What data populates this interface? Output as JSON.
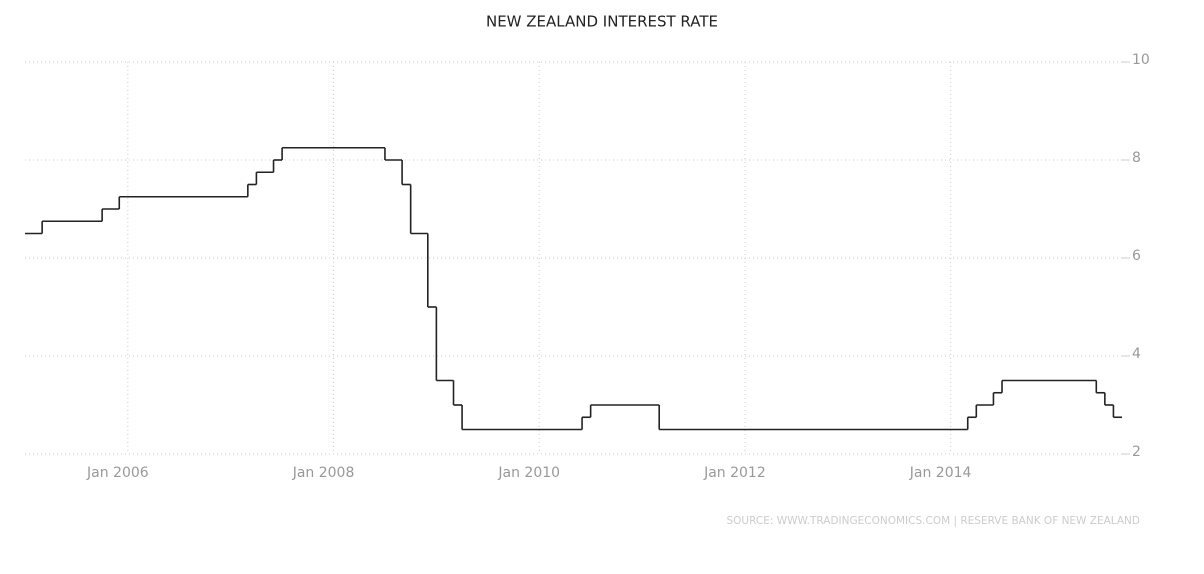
{
  "chart_data": {
    "type": "step-line",
    "title": "NEW ZEALAND INTEREST RATE",
    "source": "SOURCE: WWW.TRADINGECONOMICS.COM | RESERVE BANK OF NEW ZEALAND",
    "x": [
      "2005-01",
      "2005-03",
      "2005-10",
      "2005-12",
      "2007-03",
      "2007-04",
      "2007-06",
      "2007-07",
      "2008-07",
      "2008-09",
      "2008-10",
      "2008-12",
      "2009-01",
      "2009-03",
      "2009-04",
      "2010-06",
      "2010-07",
      "2011-03",
      "2014-03",
      "2014-04",
      "2014-06",
      "2014-07",
      "2015-06",
      "2015-07",
      "2015-08"
    ],
    "series": [
      {
        "color": "#222222",
        "values": [
          6.5,
          6.75,
          7.0,
          7.25,
          7.5,
          7.75,
          8.0,
          8.25,
          8.0,
          7.5,
          6.5,
          5.0,
          3.5,
          3.0,
          2.5,
          2.75,
          3.0,
          2.5,
          2.75,
          3.0,
          3.25,
          3.5,
          3.25,
          3.0,
          2.75
        ]
      }
    ],
    "xlim": [
      "2005-01",
      "2015-09"
    ],
    "xticks": [
      {
        "value": "2006-01",
        "label": "Jan 2006"
      },
      {
        "value": "2008-01",
        "label": "Jan 2008"
      },
      {
        "value": "2010-01",
        "label": "Jan 2010"
      },
      {
        "value": "2012-01",
        "label": "Jan 2012"
      },
      {
        "value": "2014-01",
        "label": "Jan 2014"
      }
    ],
    "ylim": [
      2,
      10
    ],
    "yticks": [
      2,
      4,
      6,
      8,
      10
    ],
    "grid": true
  }
}
